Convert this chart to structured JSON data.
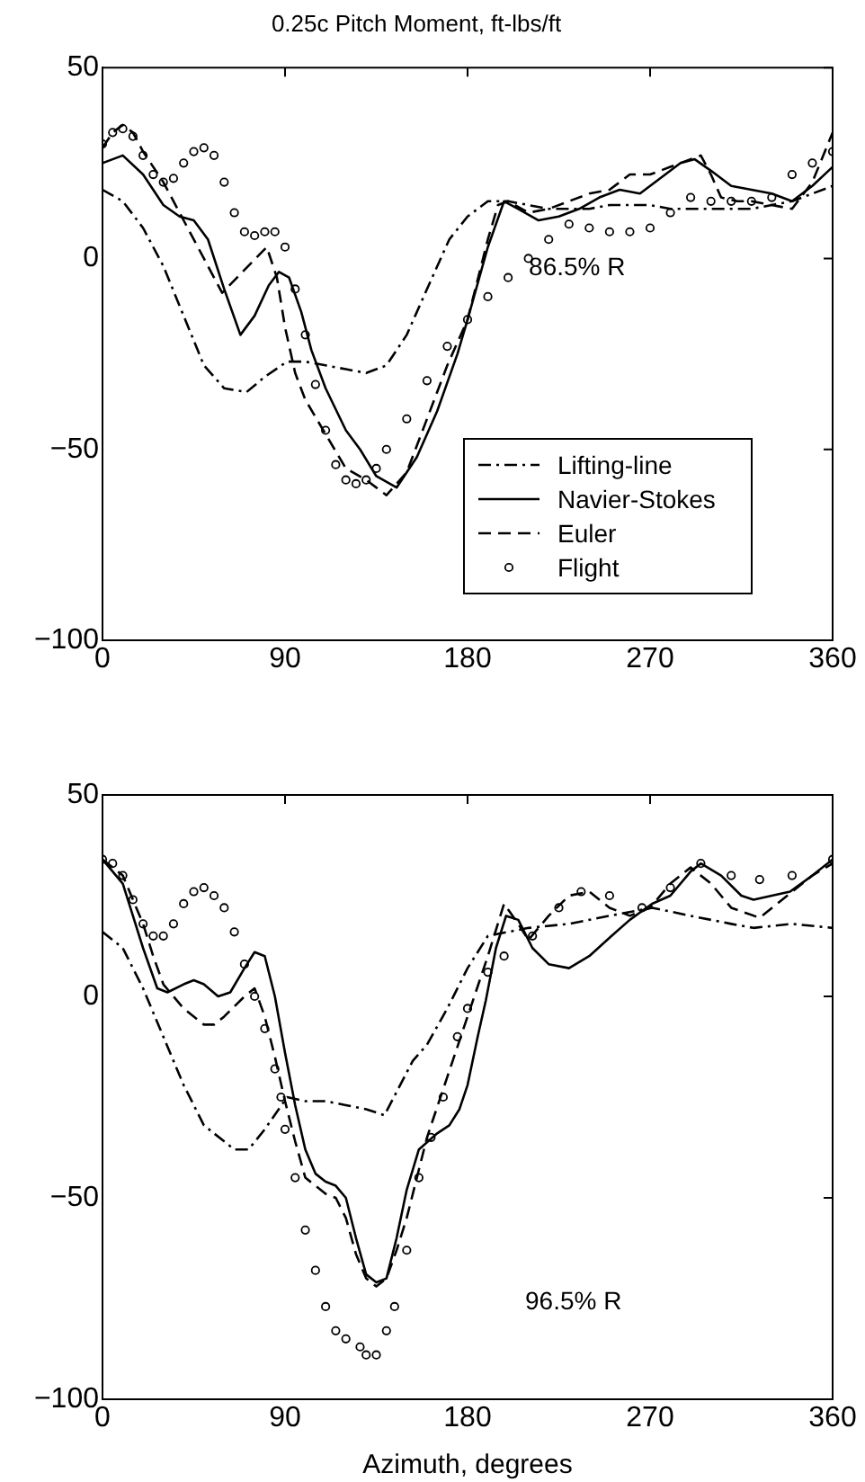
{
  "chart_data": [
    {
      "type": "line",
      "title": "0.25c Pitch Moment, ft-lbs/ft",
      "annotations": [
        "86.5% R"
      ],
      "xlim": [
        0,
        360
      ],
      "xticks": [
        0,
        90,
        180,
        270,
        360
      ],
      "ylim": [
        -100,
        50
      ],
      "yticks": [
        -100,
        -50,
        0,
        50
      ],
      "grid": false,
      "legend": "bottom right",
      "series": [
        {
          "name": "Lifting-line",
          "color": "#000000",
          "line_style": "dashdot",
          "x": [
            0,
            10,
            20,
            30,
            40,
            50,
            60,
            71,
            80,
            91,
            100,
            110,
            120,
            130,
            140,
            150,
            160,
            171,
            180,
            190,
            200,
            210,
            220,
            230,
            240,
            250,
            260,
            270,
            280,
            290,
            300,
            310,
            320,
            330,
            340,
            350,
            360
          ],
          "values": [
            18,
            15,
            8,
            -2,
            -15,
            -28,
            -34,
            -35,
            -31,
            -27,
            -27,
            -28,
            -29,
            -30,
            -28,
            -20,
            -8,
            5,
            11,
            15,
            15,
            14,
            13,
            13,
            13,
            14,
            14,
            14,
            13,
            13,
            13,
            13,
            13,
            14,
            15,
            17,
            19
          ]
        },
        {
          "name": "Navier-Stokes",
          "color": "#000000",
          "line_style": "solid",
          "x": [
            0,
            10,
            20,
            30,
            38,
            45,
            52,
            60,
            68,
            75,
            82,
            87,
            92,
            98,
            103,
            110,
            120,
            127,
            135,
            145,
            155,
            165,
            175,
            180,
            190,
            198,
            205,
            215,
            225,
            235,
            245,
            255,
            265,
            275,
            285,
            292,
            300,
            310,
            320,
            330,
            340,
            350,
            360
          ],
          "values": [
            25,
            27,
            22,
            14,
            11,
            10,
            5,
            -8,
            -20,
            -15,
            -7,
            -3.5,
            -5,
            -14,
            -24,
            -34,
            -45,
            -50,
            -57,
            -60,
            -52,
            -40,
            -25,
            -16,
            3,
            15,
            13,
            10,
            11,
            13,
            16,
            18,
            17,
            21,
            25,
            26,
            23,
            19,
            18,
            17,
            15,
            19,
            24
          ]
        },
        {
          "name": "Euler",
          "color": "#000000",
          "line_style": "dashed",
          "x": [
            0,
            5,
            10,
            15,
            20,
            30,
            40,
            50,
            59,
            70,
            81,
            86,
            90,
            95,
            100,
            110,
            120,
            130,
            140,
            150,
            160,
            170,
            180,
            190,
            195,
            200,
            210,
            220,
            230,
            240,
            250,
            260,
            270,
            280,
            295,
            300,
            305,
            313,
            320,
            330,
            340,
            350,
            360
          ],
          "values": [
            29,
            33,
            35,
            33,
            28,
            20,
            10,
            0,
            -9,
            -3,
            3,
            -5,
            -18,
            -30,
            -37,
            -46,
            -55,
            -58,
            -62,
            -56,
            -42,
            -28,
            -16,
            5,
            14,
            15,
            12,
            13,
            15,
            17,
            18,
            22,
            22,
            24,
            27,
            22,
            16,
            15,
            15,
            14,
            13,
            20,
            33
          ]
        },
        {
          "name": "Flight",
          "type": "scatter",
          "color": "#000000",
          "marker": "circle",
          "x": [
            0,
            5,
            10,
            15,
            20,
            25,
            30,
            35,
            40,
            45,
            50,
            55,
            60,
            65,
            70,
            75,
            80,
            85,
            90,
            95,
            100,
            105,
            110,
            115,
            120,
            125,
            130,
            135,
            140,
            150,
            160,
            170,
            180,
            190,
            200,
            210,
            220,
            230,
            240,
            250,
            260,
            270,
            280,
            290,
            300,
            310,
            320,
            330,
            340,
            350,
            360
          ],
          "values": [
            30,
            33,
            34,
            32,
            27,
            22,
            20,
            21,
            25,
            28,
            29,
            27,
            20,
            12,
            7,
            6,
            7,
            7,
            3,
            -8,
            -20,
            -33,
            -45,
            -54,
            -58,
            -59,
            -58,
            -55,
            -50,
            -42,
            -32,
            -23,
            -16,
            -10,
            -5,
            0,
            5,
            9,
            8,
            7,
            7,
            8,
            12,
            16,
            15,
            15,
            15,
            16,
            22,
            25,
            28
          ]
        }
      ]
    },
    {
      "type": "line",
      "xlabel": "Azimuth, degrees",
      "annotations": [
        "96.5% R"
      ],
      "xlim": [
        0,
        360
      ],
      "xticks": [
        0,
        90,
        180,
        270,
        360
      ],
      "ylim": [
        -100,
        50
      ],
      "yticks": [
        -100,
        -50,
        0,
        50
      ],
      "grid": false,
      "series": [
        {
          "color": "#000000",
          "line_style": "dashdot",
          "x": [
            0,
            10,
            20,
            30,
            40,
            50,
            65,
            72,
            80,
            91,
            100,
            110,
            120,
            130,
            139,
            153,
            160,
            170,
            180,
            190,
            200,
            210,
            230,
            250,
            271,
            290,
            310,
            321,
            340,
            360
          ],
          "values": [
            16,
            12,
            2,
            -10,
            -22,
            -32,
            -38,
            -38,
            -33,
            -25,
            -26,
            -26,
            -27,
            -28,
            -29.5,
            -16,
            -12,
            -3,
            7,
            15,
            16,
            17,
            18,
            20,
            22,
            20,
            18,
            17,
            18,
            17
          ]
        },
        {
          "color": "#000000",
          "line_style": "solid",
          "x": [
            0,
            10,
            20,
            27,
            32,
            40,
            45,
            50,
            57,
            63,
            70,
            75,
            80,
            85,
            90,
            95,
            100,
            105,
            110,
            115,
            120,
            125,
            130,
            135,
            140,
            145,
            150,
            156,
            165,
            171,
            176,
            180,
            185,
            189,
            194,
            199,
            205,
            212,
            220,
            230,
            240,
            251,
            260,
            271,
            280,
            290,
            295,
            305,
            315,
            321,
            330,
            339,
            350,
            360
          ],
          "values": [
            34,
            28,
            12,
            2,
            1,
            3,
            4,
            3,
            0,
            1,
            7,
            11,
            10,
            0,
            -14,
            -27,
            -38,
            -44,
            -46,
            -47,
            -50,
            -60,
            -69,
            -71,
            -70,
            -60,
            -48,
            -38,
            -34,
            -32,
            -28,
            -22,
            -10,
            -1,
            12,
            20,
            19,
            12,
            8,
            7,
            10,
            15,
            19,
            23,
            25,
            31,
            33,
            30,
            25,
            24,
            25,
            26,
            30,
            34
          ]
        },
        {
          "color": "#000000",
          "line_style": "dashed",
          "x": [
            0,
            10,
            20,
            25,
            30,
            40,
            50,
            55,
            60,
            70,
            75,
            80,
            85,
            90,
            95,
            100,
            110,
            115,
            120,
            125,
            130,
            135,
            140,
            145,
            150,
            155,
            160,
            170,
            180,
            190,
            198,
            205,
            210,
            220,
            230,
            240,
            250,
            260,
            270,
            280,
            290,
            300,
            310,
            324,
            340,
            350,
            360
          ],
          "values": [
            34,
            30,
            18,
            10,
            3,
            -3,
            -7,
            -7,
            -5,
            0,
            2,
            -5,
            -15,
            -26,
            -36,
            -45,
            -49,
            -50,
            -55,
            -64,
            -70,
            -72,
            -70,
            -63,
            -55,
            -45,
            -35,
            -20,
            -5,
            10,
            23,
            18,
            14,
            20,
            25,
            26,
            22,
            20,
            22,
            28,
            32,
            28,
            22,
            19.5,
            26,
            30,
            33
          ]
        },
        {
          "type": "scatter",
          "color": "#000000",
          "marker": "circle",
          "x": [
            0,
            5,
            10,
            15,
            20,
            25,
            30,
            35,
            40,
            45,
            50,
            55,
            60,
            65,
            70,
            75,
            80,
            85,
            88,
            90,
            95,
            100,
            105,
            110,
            115,
            120,
            127,
            130,
            135,
            140,
            144,
            150,
            156,
            162,
            168,
            175,
            180,
            190,
            198,
            212,
            225,
            236,
            250,
            266,
            280,
            295,
            310,
            324,
            340,
            360
          ],
          "values": [
            34,
            33,
            30,
            24,
            18,
            15,
            15,
            18,
            23,
            26,
            27,
            25,
            22,
            16,
            8,
            0,
            -8,
            -18,
            -25,
            -33,
            -45,
            -58,
            -68,
            -77,
            -83,
            -85,
            -87,
            -89,
            -89,
            -83,
            -77,
            -63,
            -45,
            -35,
            -25,
            -10,
            -3,
            6,
            10,
            15,
            22,
            26,
            25,
            22,
            27,
            33,
            30,
            29,
            30,
            34
          ]
        }
      ]
    }
  ]
}
